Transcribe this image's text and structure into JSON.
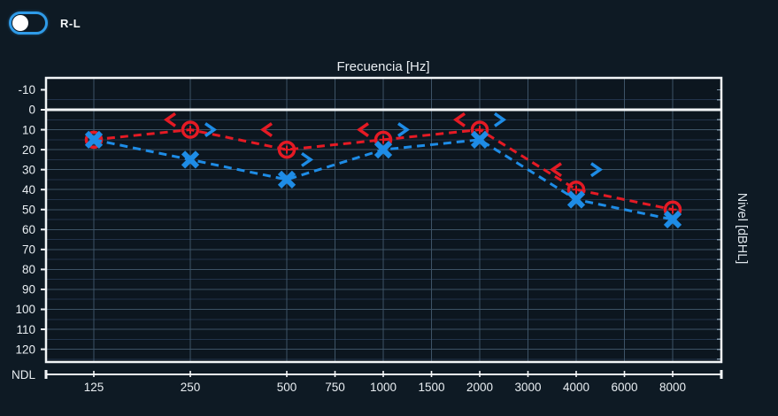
{
  "toolbar": {
    "toggle_label": "R-L",
    "toggle_position": "left"
  },
  "chart_data": {
    "type": "line",
    "subtype": "audiogram",
    "title": "Frecuencia [Hz]",
    "ylabel": "Nivel [dBHL]",
    "y_bottom_label": "NDL",
    "x_ticks": [
      125,
      250,
      500,
      750,
      1000,
      1500,
      2000,
      3000,
      4000,
      6000,
      8000
    ],
    "y_ticks": [
      -10,
      0,
      10,
      20,
      30,
      40,
      50,
      60,
      70,
      80,
      90,
      100,
      110,
      120
    ],
    "ylim": [
      -15,
      127
    ],
    "x_scale": "log-octave",
    "grid": true,
    "zero_line_db": 0,
    "legend_position": "none",
    "series": [
      {
        "name": "right-ear-air-conduction",
        "marker": "circle",
        "color": "#e51a24",
        "line": "dashed",
        "points": [
          {
            "f": 125,
            "db": 15
          },
          {
            "f": 250,
            "db": 10
          },
          {
            "f": 500,
            "db": 20
          },
          {
            "f": 1000,
            "db": 15
          },
          {
            "f": 2000,
            "db": 10
          },
          {
            "f": 4000,
            "db": 40
          },
          {
            "f": 8000,
            "db": 50
          }
        ]
      },
      {
        "name": "left-ear-air-conduction",
        "marker": "x",
        "color": "#1e8ce6",
        "line": "dashed",
        "points": [
          {
            "f": 125,
            "db": 15
          },
          {
            "f": 250,
            "db": 25
          },
          {
            "f": 500,
            "db": 35
          },
          {
            "f": 1000,
            "db": 20
          },
          {
            "f": 2000,
            "db": 15
          },
          {
            "f": 4000,
            "db": 45
          },
          {
            "f": 8000,
            "db": 55
          }
        ]
      },
      {
        "name": "right-ear-bone-conduction",
        "marker": "<",
        "color": "#e51a24",
        "line": "none",
        "points": [
          {
            "f": 250,
            "db": 5
          },
          {
            "f": 500,
            "db": 10
          },
          {
            "f": 1000,
            "db": 10
          },
          {
            "f": 2000,
            "db": 5
          },
          {
            "f": 4000,
            "db": 30
          }
        ]
      },
      {
        "name": "left-ear-bone-conduction",
        "marker": ">",
        "color": "#1e8ce6",
        "line": "none",
        "points": [
          {
            "f": 250,
            "db": 10
          },
          {
            "f": 500,
            "db": 25
          },
          {
            "f": 1000,
            "db": 10
          },
          {
            "f": 2000,
            "db": 5
          },
          {
            "f": 4000,
            "db": 30
          }
        ]
      }
    ]
  },
  "colors": {
    "background": "#0e1a24",
    "plot_background": "#0c161f",
    "grid_major": "#3d5366",
    "grid_minor": "#22334a",
    "axis": "#f2f5f7",
    "text": "#e9eef2",
    "red_series": "#e51a24",
    "blue_series": "#1e8ce6",
    "toggle_border": "#2f9be8",
    "toggle_knob": "#ffffff"
  }
}
